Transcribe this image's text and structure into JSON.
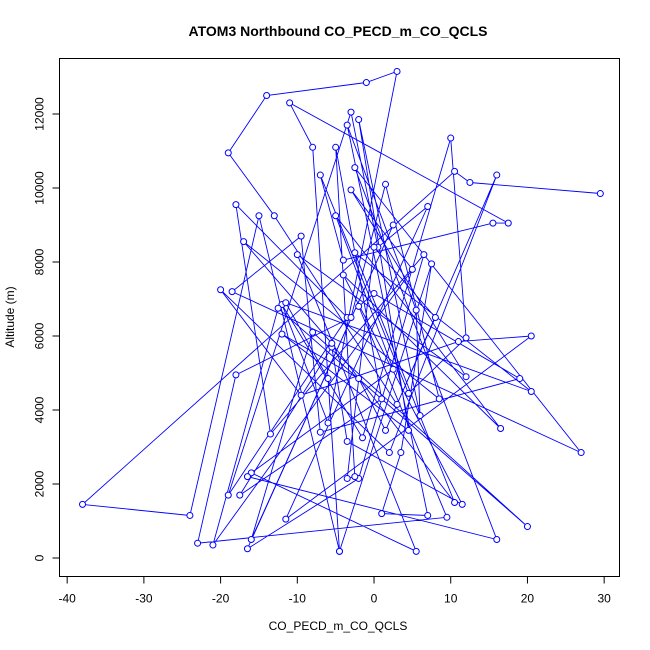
{
  "chart_data": {
    "type": "line",
    "title": "ATOM3 Northbound CO_PECD_m_CO_QCLS",
    "xlabel": "CO_PECD_m_CO_QCLS",
    "ylabel": "Altitude (m)",
    "xlim": [
      -41,
      32
    ],
    "ylim": [
      -500,
      13500
    ],
    "xticks": [
      -40,
      -30,
      -20,
      -10,
      0,
      10,
      20,
      30
    ],
    "yticks": [
      0,
      2000,
      4000,
      6000,
      8000,
      10000,
      12000
    ],
    "series_color": "#0000ff",
    "grid": false,
    "legend": "none",
    "series": [
      {
        "x": [
          29.5,
          12.5,
          10.5,
          -38,
          -24,
          -15,
          -4.5,
          -8,
          -11,
          17.5,
          15.5,
          -4,
          -7,
          4.5,
          12,
          10,
          -1.5,
          -12,
          -6,
          3,
          -1,
          -14,
          -19,
          -13,
          3,
          16,
          2,
          -20,
          -9.5,
          11,
          20.5,
          -11.5,
          7,
          0.5,
          -3,
          -19,
          -3.5,
          -18,
          -13.5,
          6.5,
          -2,
          -16.5,
          2.5,
          -16,
          -8,
          20,
          -12.5,
          -21,
          5,
          -3,
          12,
          -10,
          5.5,
          -16,
          2.5,
          -5,
          16.5,
          -4,
          11.5,
          -3.5,
          -5.5,
          -17.5,
          1,
          -5,
          -2.5,
          -3.5,
          0,
          8,
          1.5,
          -2,
          -12,
          4.5,
          -2,
          6,
          5.5,
          -3.5,
          7,
          1,
          3.5,
          7.5,
          -4.5,
          -6,
          -11.5,
          20.5,
          -2.5,
          10.5,
          -5.5,
          -17,
          8.5,
          1.5,
          -3,
          -18,
          -23,
          9.5,
          -2,
          0,
          19,
          -7,
          -9.5,
          -18.5,
          27,
          -2.5,
          16,
          -16.5
        ],
        "y": [
          9850,
          10150,
          10450,
          1450,
          1150,
          9250,
          180,
          11100,
          12300,
          9050,
          9050,
          8050,
          10350,
          4450,
          5950,
          11350,
          3250,
          6850,
          3650,
          13150,
          12850,
          12500,
          10950,
          9250,
          4150,
          10350,
          2850,
          7250,
          4400,
          5850,
          6000,
          1050,
          9500,
          8400,
          12050,
          1700,
          6500,
          9550,
          3350,
          8200,
          2150,
          250,
          9000,
          500,
          6100,
          850,
          6750,
          350,
          7800,
          9950,
          4900,
          8200,
          180,
          2300,
          5100,
          9250,
          3500,
          7650,
          1450,
          3150,
          5700,
          1700,
          4300,
          11100,
          2200,
          2150,
          8400,
          6500,
          3450,
          4850,
          6050,
          3450,
          11850,
          3850,
          6700,
          11700,
          1150,
          1200,
          2850,
          7950,
          180,
          4850,
          6900,
          4500,
          8250,
          1500,
          5800,
          8550,
          4300,
          10100,
          6500,
          4950,
          400,
          1100,
          6800,
          7150,
          4850,
          3400,
          8700,
          7200,
          2850,
          10550,
          500,
          2200
        ]
      }
    ]
  }
}
